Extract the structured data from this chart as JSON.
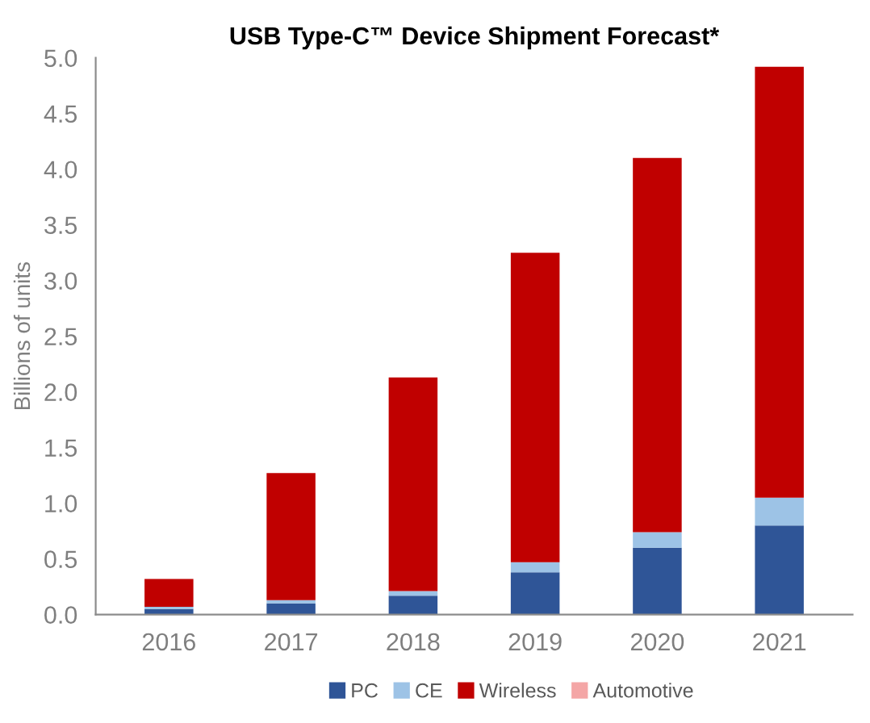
{
  "chart_data": {
    "type": "bar",
    "title": "USB Type-C™ Device Shipment Forecast*",
    "ylabel": "Billions of units",
    "categories": [
      "2016",
      "2017",
      "2018",
      "2019",
      "2020",
      "2021"
    ],
    "stacked": true,
    "series": [
      {
        "name": "PC",
        "color": "#2f5597",
        "values": [
          0.05,
          0.1,
          0.17,
          0.38,
          0.6,
          0.8
        ]
      },
      {
        "name": "CE",
        "color": "#9dc3e6",
        "values": [
          0.02,
          0.03,
          0.04,
          0.09,
          0.14,
          0.25
        ]
      },
      {
        "name": "Wireless",
        "color": "#c00000",
        "values": [
          0.25,
          1.14,
          1.92,
          2.78,
          3.36,
          3.87
        ]
      },
      {
        "name": "Automotive",
        "color": "#f4a6a6",
        "values": [
          null,
          null,
          null,
          null,
          null,
          null
        ]
      }
    ],
    "ylim": [
      0,
      5
    ],
    "yticks": [
      {
        "value": 0,
        "label": "0.0"
      },
      {
        "value": 0.5,
        "label": "0.5"
      },
      {
        "value": 1,
        "label": "1.0"
      },
      {
        "value": 1.5,
        "label": "1.5"
      },
      {
        "value": 2,
        "label": "2.0"
      },
      {
        "value": 2.5,
        "label": "2.5"
      },
      {
        "value": 3,
        "label": "3.0"
      },
      {
        "value": 3.5,
        "label": "3.5"
      },
      {
        "value": 4,
        "label": "4.0"
      },
      {
        "value": 4.5,
        "label": "4.5"
      },
      {
        "value": 5,
        "label": "5.0"
      }
    ],
    "grid": false,
    "legend": "bottom"
  }
}
